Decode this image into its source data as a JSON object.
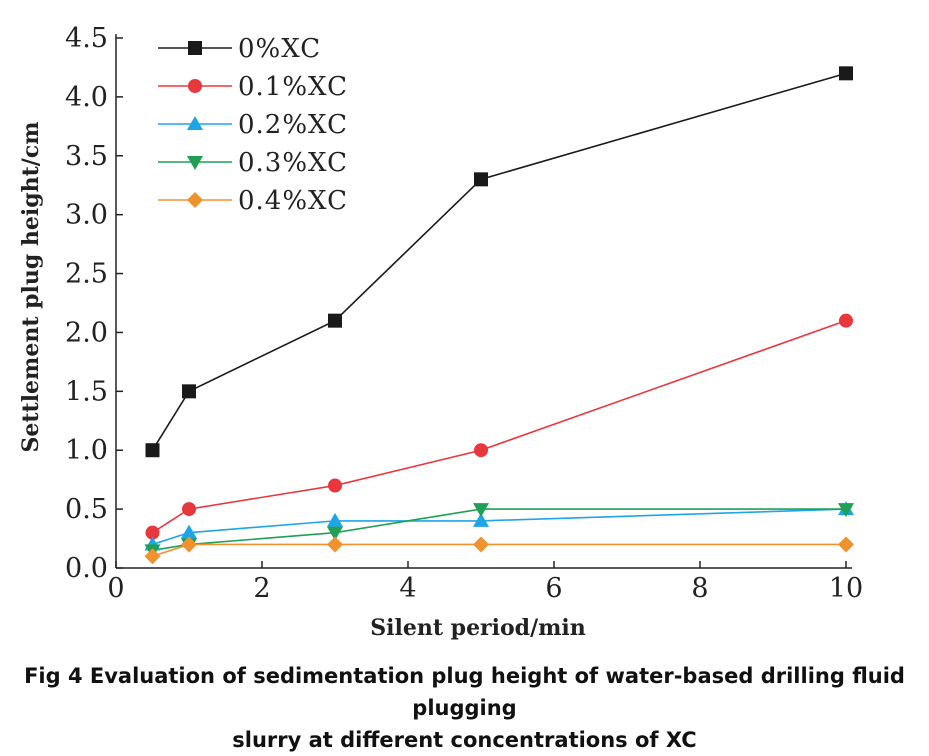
{
  "chart_data": {
    "type": "line",
    "title": "",
    "xlabel": "Silent period/min",
    "ylabel": "Settlement plug height/cm",
    "xlim": [
      0,
      10
    ],
    "ylim": [
      0,
      4.5
    ],
    "xticks": [
      0,
      2,
      4,
      6,
      8,
      10
    ],
    "xtick_labels": [
      "0",
      "2",
      "4",
      "6",
      "8",
      "10"
    ],
    "yticks": [
      0,
      0.5,
      1,
      1.5,
      2,
      2.5,
      3,
      3.5,
      4,
      4.5
    ],
    "ytick_labels": [
      "0.0",
      "0.5",
      "1.0",
      "1.5",
      "2.0",
      "2.5",
      "3.0",
      "3.5",
      "4.0",
      "4.5"
    ],
    "grid": false,
    "legend_position": "top-left",
    "x": [
      0.5,
      1,
      3,
      5,
      10
    ],
    "series": [
      {
        "name": "0%XC",
        "values": [
          1.0,
          1.5,
          2.1,
          3.3,
          4.2
        ],
        "color": "#1a1a1a",
        "marker": "square"
      },
      {
        "name": "0.1%XC",
        "values": [
          0.3,
          0.5,
          0.7,
          1.0,
          2.1
        ],
        "color": "#e8383d",
        "marker": "circle"
      },
      {
        "name": "0.2%XC",
        "values": [
          0.2,
          0.3,
          0.4,
          0.4,
          0.5
        ],
        "color": "#1ea5e8",
        "marker": "triangle-up"
      },
      {
        "name": "0.3%XC",
        "values": [
          0.15,
          0.2,
          0.3,
          0.5,
          0.5
        ],
        "color": "#1fa055",
        "marker": "triangle-down"
      },
      {
        "name": "0.4%XC",
        "values": [
          0.1,
          0.2,
          0.2,
          0.2,
          0.2
        ],
        "color": "#f0922e",
        "marker": "diamond"
      }
    ]
  },
  "caption": {
    "line1": "Fig 4 Evaluation of sedimentation plug height of water-based drilling fluid plugging",
    "line2": "slurry at different concentrations of XC"
  }
}
